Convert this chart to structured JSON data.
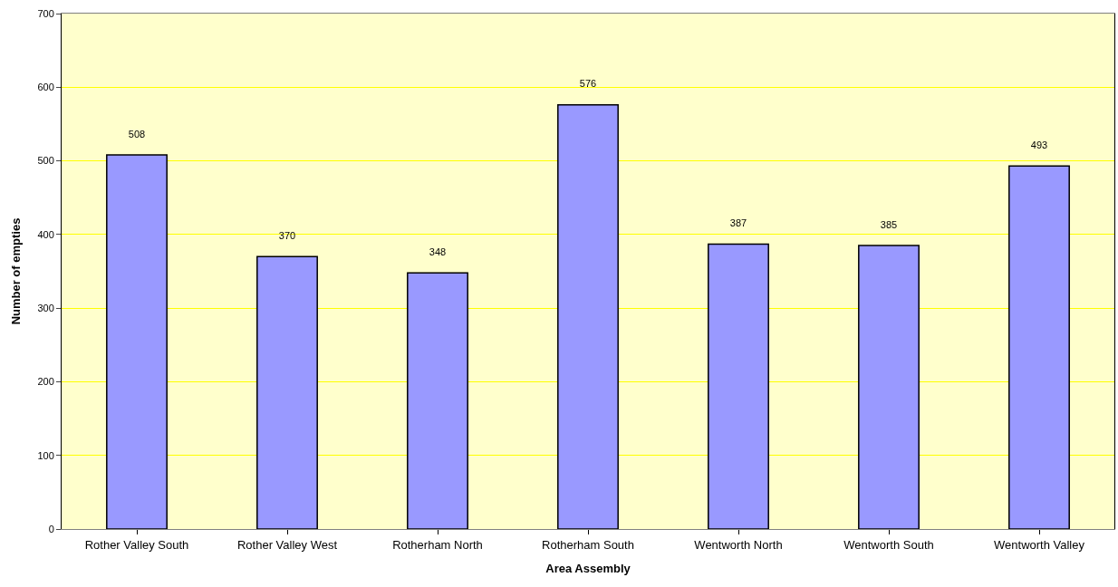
{
  "chart_data": {
    "type": "bar",
    "xlabel": "Area Assembly",
    "ylabel": "Number of empties",
    "categories": [
      "Rother Valley South",
      "Rother Valley West",
      "Rotherham North",
      "Rotherham South",
      "Wentworth North",
      "Wentworth South",
      "Wentworth Valley"
    ],
    "values": [
      508,
      370,
      348,
      576,
      387,
      385,
      493
    ],
    "color": "#9999ff",
    "ylim": [
      0,
      700
    ],
    "yticks": [
      0,
      100,
      200,
      300,
      400,
      500,
      600,
      700
    ],
    "grid": "y",
    "data_labels": true
  }
}
